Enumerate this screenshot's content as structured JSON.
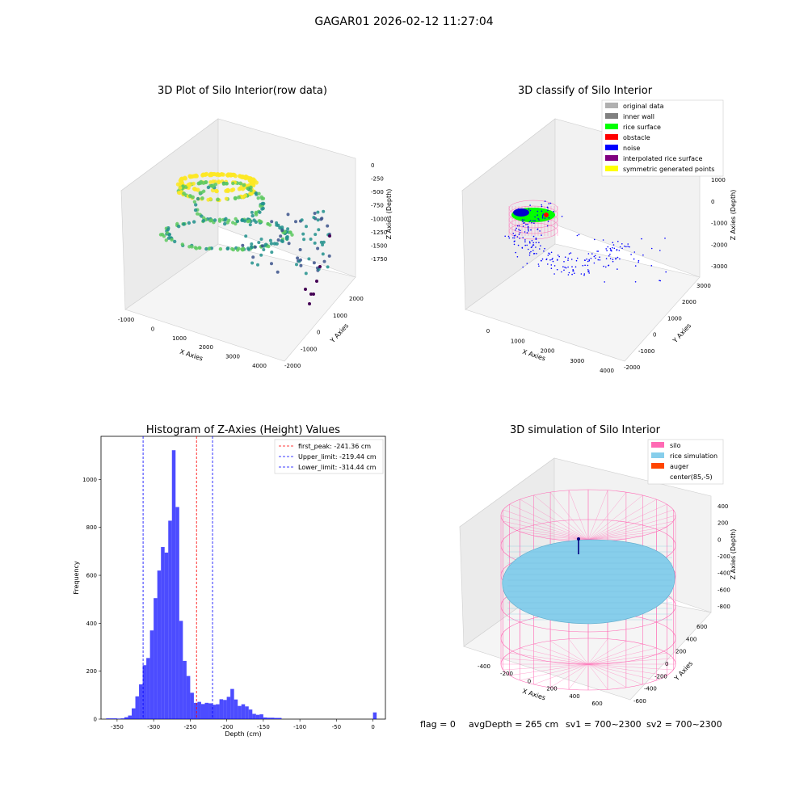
{
  "suptitle": "GAGAR01 2026-02-12 11:27:04",
  "chart_data": [
    {
      "type": "scatter3d",
      "title": "3D Plot of Silo Interior(row data)",
      "xlabel": "X Axies",
      "ylabel": "Y Axies",
      "zlabel": "Z Axies (Depth)",
      "x_ticks": [
        "-1000",
        "0",
        "1000",
        "2000",
        "3000",
        "4000"
      ],
      "y_ticks": [
        "-2000",
        "-1000",
        "0",
        "1000",
        "2000"
      ],
      "z_ticks": [
        "0",
        "-250",
        "-500",
        "-750",
        "-1000",
        "-1250",
        "-1500",
        "-1750"
      ],
      "colormap": [
        "#440154",
        "#3b528b",
        "#21918c",
        "#5ec962",
        "#fde725"
      ]
    },
    {
      "type": "scatter3d",
      "title": "3D classify of Silo Interior",
      "xlabel": "X Axies",
      "ylabel": "Y Axies",
      "zlabel": "Z Axies (Depth)",
      "x_ticks": [
        "0",
        "1000",
        "2000",
        "3000",
        "4000"
      ],
      "y_ticks": [
        "-2000",
        "-1000",
        "0",
        "1000",
        "2000",
        "3000"
      ],
      "z_ticks": [
        "1000",
        "0",
        "-1000",
        "-2000",
        "-3000"
      ],
      "legend_position": "top-right",
      "legend": [
        {
          "label": "original data",
          "color": "#b0b0b0"
        },
        {
          "label": "inner wall",
          "color": "#808080"
        },
        {
          "label": "rice surface",
          "color": "#00ff00"
        },
        {
          "label": "obstacle",
          "color": "#ff0000"
        },
        {
          "label": "noise",
          "color": "#0000ff"
        },
        {
          "label": "interpolated rice surface",
          "color": "#800080"
        },
        {
          "label": "symmetric generated points",
          "color": "#ffff00"
        }
      ]
    },
    {
      "type": "bar",
      "title": "Histogram of Z-Axies (Height) Values",
      "xlabel": "Depth (cm)",
      "ylabel": "Frequency",
      "xlim": [
        -372,
        17
      ],
      "ylim": [
        0,
        1180
      ],
      "x_ticks": [
        -350,
        -300,
        -250,
        -200,
        -150,
        -100,
        -50,
        0
      ],
      "y_ticks": [
        0,
        200,
        400,
        600,
        800,
        1000
      ],
      "bin_width": 5,
      "bar_color": "#0000ff",
      "bins_start": [
        -365,
        -360,
        -355,
        -350,
        -345,
        -340,
        -335,
        -330,
        -325,
        -320,
        -315,
        -310,
        -305,
        -300,
        -295,
        -290,
        -285,
        -280,
        -275,
        -270,
        -265,
        -260,
        -255,
        -250,
        -245,
        -240,
        -235,
        -230,
        -225,
        -220,
        -215,
        -210,
        -205,
        -200,
        -195,
        -190,
        -185,
        -180,
        -175,
        -170,
        -165,
        -160,
        -155,
        -150,
        -145,
        -140,
        -135,
        -130,
        -125,
        -120,
        -115,
        -110,
        -105,
        -100,
        -95,
        -90,
        -85,
        -80,
        -75,
        -70,
        -65,
        -60,
        -55,
        -50,
        -45,
        -40,
        -35,
        -30,
        -25,
        -20,
        -15,
        -10,
        -5,
        0
      ],
      "values": [
        3,
        3,
        3,
        2,
        3,
        8,
        15,
        45,
        95,
        145,
        225,
        255,
        370,
        505,
        620,
        718,
        695,
        828,
        1122,
        885,
        410,
        243,
        180,
        110,
        68,
        72,
        63,
        68,
        66,
        60,
        62,
        83,
        80,
        93,
        126,
        82,
        55,
        62,
        53,
        40,
        22,
        18,
        20,
        7,
        6,
        6,
        5,
        5,
        0,
        0,
        0,
        0,
        0,
        0,
        0,
        0,
        0,
        0,
        0,
        0,
        0,
        0,
        0,
        0,
        0,
        0,
        0,
        0,
        0,
        0,
        0,
        0,
        0,
        28
      ],
      "vlines": [
        {
          "value": -241.36,
          "color": "#ff0000",
          "label": "first_peak: -241.36 cm"
        },
        {
          "value": -219.44,
          "color": "#0000ff",
          "label": "Upper_limit: -219.44 cm"
        },
        {
          "value": -314.44,
          "color": "#0000ff",
          "label": "Lower_limit: -314.44 cm"
        }
      ],
      "legend_position": "top-right"
    },
    {
      "type": "surface3d",
      "title": "3D simulation of Silo Interior",
      "xlabel": "X Axies",
      "ylabel": "Y Axies",
      "zlabel": "Z Axies (Depth)",
      "x_ticks": [
        "-400",
        "-200",
        "0",
        "200",
        "400",
        "600"
      ],
      "y_ticks": [
        "-600",
        "-400",
        "-200",
        "0",
        "200",
        "400",
        "600"
      ],
      "z_ticks": [
        "400",
        "200",
        "0",
        "-200",
        "-400",
        "-600",
        "-800"
      ],
      "legend_position": "top-right",
      "legend": [
        {
          "label": "silo",
          "color": "#ff69b4"
        },
        {
          "label": "rice simulation",
          "color": "#87ceeb"
        },
        {
          "label": "auger",
          "color": "#ff4500"
        },
        {
          "label": "center(85,-5)",
          "color": "#ffffff"
        }
      ]
    }
  ],
  "footer": {
    "flag": "flag = 0",
    "avg": "avgDepth = 265 cm",
    "sv1": "sv1 = 700~2300",
    "sv2": "sv2 = 700~2300"
  }
}
